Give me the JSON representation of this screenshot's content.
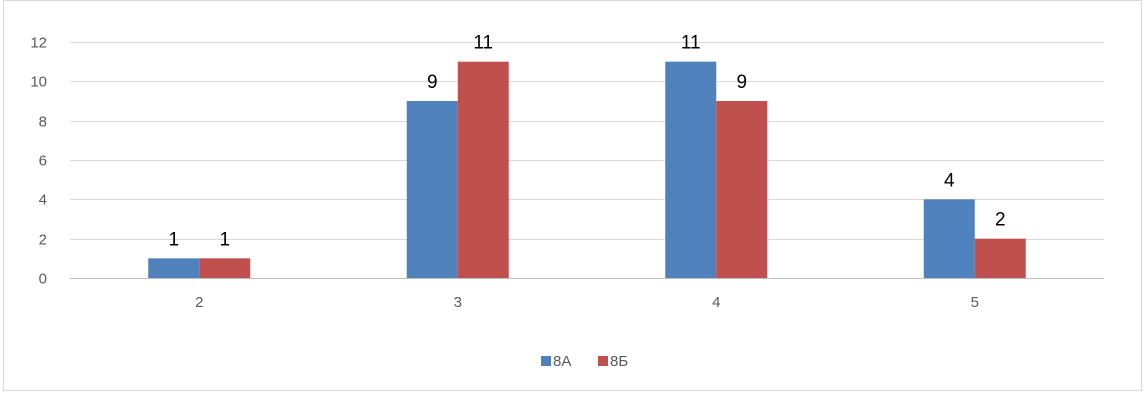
{
  "chart_data": {
    "type": "bar",
    "title": "",
    "xlabel": "",
    "ylabel": "",
    "categories": [
      "2",
      "3",
      "4",
      "5"
    ],
    "series": [
      {
        "name": "8А",
        "values": [
          1,
          9,
          11,
          4
        ],
        "color": "#4f81bd"
      },
      {
        "name": "8Б",
        "values": [
          1,
          11,
          9,
          2
        ],
        "color": "#c0504d"
      }
    ],
    "ylim": [
      0,
      12
    ],
    "yticks": [
      "0",
      "2",
      "4",
      "6",
      "8",
      "10",
      "12"
    ],
    "grid": true,
    "data_labels": true,
    "legend_position": "bottom",
    "colors": {
      "gridline": "#d9d9d9",
      "axis": "#bfbfbf",
      "frame": "#d9d9d9",
      "tick_text": "#595959"
    }
  }
}
